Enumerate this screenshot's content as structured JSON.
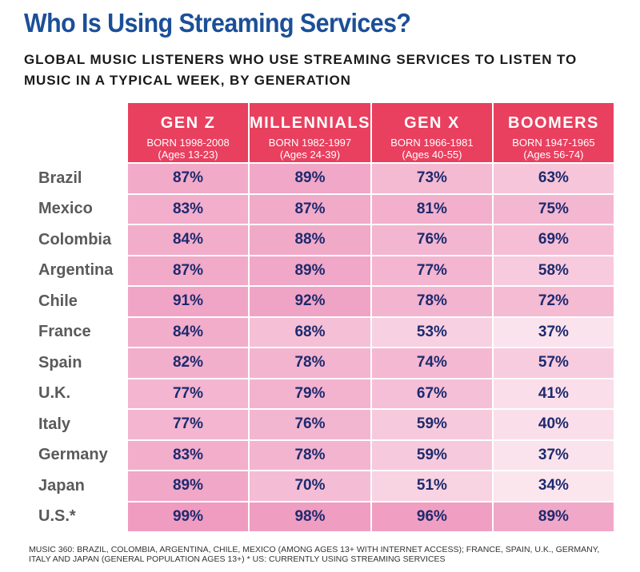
{
  "header": {
    "title": "Who Is Using Streaming Services?",
    "subtitle": "GLOBAL MUSIC LISTENERS WHO USE STREAMING SERVICES TO LISTEN TO MUSIC IN A TYPICAL WEEK, BY GENERATION"
  },
  "chart_data": {
    "type": "table",
    "title": "Who Is Using Streaming Services?",
    "subtitle": "GLOBAL MUSIC LISTENERS WHO USE STREAMING SERVICES TO LISTEN TO MUSIC IN A TYPICAL WEEK, BY GENERATION",
    "columns": [
      {
        "name": "GEN Z",
        "born": "BORN 1998-2008",
        "ages": "(Ages 13-23)"
      },
      {
        "name": "MILLENNIALS",
        "born": "BORN 1982-1997",
        "ages": "(Ages 24-39)"
      },
      {
        "name": "GEN X",
        "born": "BORN 1966-1981",
        "ages": "(Ages 40-55)"
      },
      {
        "name": "BOOMERS",
        "born": "BORN 1947-1965",
        "ages": "(Ages 56-74)"
      }
    ],
    "rows": [
      {
        "country": "Brazil",
        "values": [
          87,
          89,
          73,
          63
        ]
      },
      {
        "country": "Mexico",
        "values": [
          83,
          87,
          81,
          75
        ]
      },
      {
        "country": "Colombia",
        "values": [
          84,
          88,
          76,
          69
        ]
      },
      {
        "country": "Argentina",
        "values": [
          87,
          89,
          77,
          58
        ]
      },
      {
        "country": "Chile",
        "values": [
          91,
          92,
          78,
          72
        ]
      },
      {
        "country": "France",
        "values": [
          84,
          68,
          53,
          37
        ]
      },
      {
        "country": "Spain",
        "values": [
          82,
          78,
          74,
          57
        ]
      },
      {
        "country": "U.K.",
        "values": [
          77,
          79,
          67,
          41
        ]
      },
      {
        "country": "Italy",
        "values": [
          77,
          76,
          59,
          40
        ]
      },
      {
        "country": "Germany",
        "values": [
          83,
          78,
          59,
          37
        ]
      },
      {
        "country": "Japan",
        "values": [
          89,
          70,
          51,
          34
        ]
      },
      {
        "country": "U.S.*",
        "values": [
          99,
          98,
          96,
          89
        ]
      }
    ],
    "value_suffix": "%",
    "colors": {
      "header_bg": "#e8405e",
      "high": "#ef9cc0",
      "low": "#fbe6ee",
      "value_text": "#1e2a6e",
      "title_text": "#1b4f98"
    }
  },
  "footnote": "MUSIC 360: BRAZIL, COLOMBIA, ARGENTINA, CHILE, MEXICO (AMONG AGES 13+ WITH INTERNET ACCESS); FRANCE, SPAIN, U.K., GERMANY, ITALY AND JAPAN (GENERAL POPULATION AGES 13+) * US: CURRENTLY USING STREAMING SERVICES"
}
